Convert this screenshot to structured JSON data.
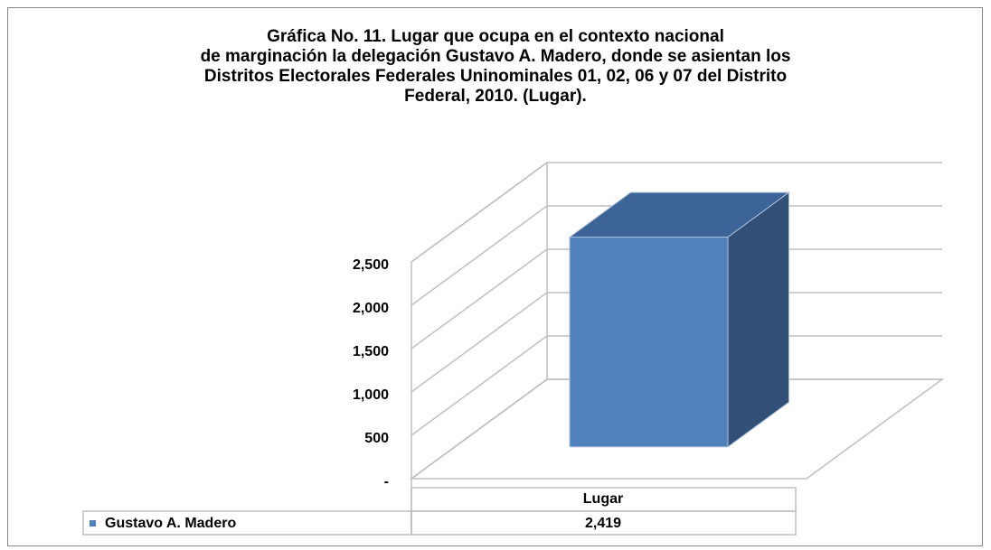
{
  "chart_data": {
    "type": "bar3d",
    "title": "Gráfica No. 11. Lugar que ocupa en el contexto nacional\nde marginación la delegación Gustavo A. Madero, donde se asientan los\nDistritos Electorales Federales Uninominales 01, 02, 06 y 07 del Distrito\nFederal, 2010. (Lugar).",
    "categories": [
      "Lugar"
    ],
    "series": [
      {
        "name": "Gustavo A. Madero",
        "color": "#4f81bd",
        "values": [
          2419
        ],
        "value_labels": [
          "2,419"
        ]
      }
    ],
    "ylim": [
      0,
      2500
    ],
    "yticks": [
      {
        "value": 0,
        "label": "-"
      },
      500,
      {
        "value": 1000,
        "label": "1,000"
      },
      {
        "value": 1500,
        "label": "1,500"
      },
      {
        "value": 2000,
        "label": "2,000"
      },
      {
        "value": 2500,
        "label": "2,500"
      }
    ],
    "grid": true
  }
}
